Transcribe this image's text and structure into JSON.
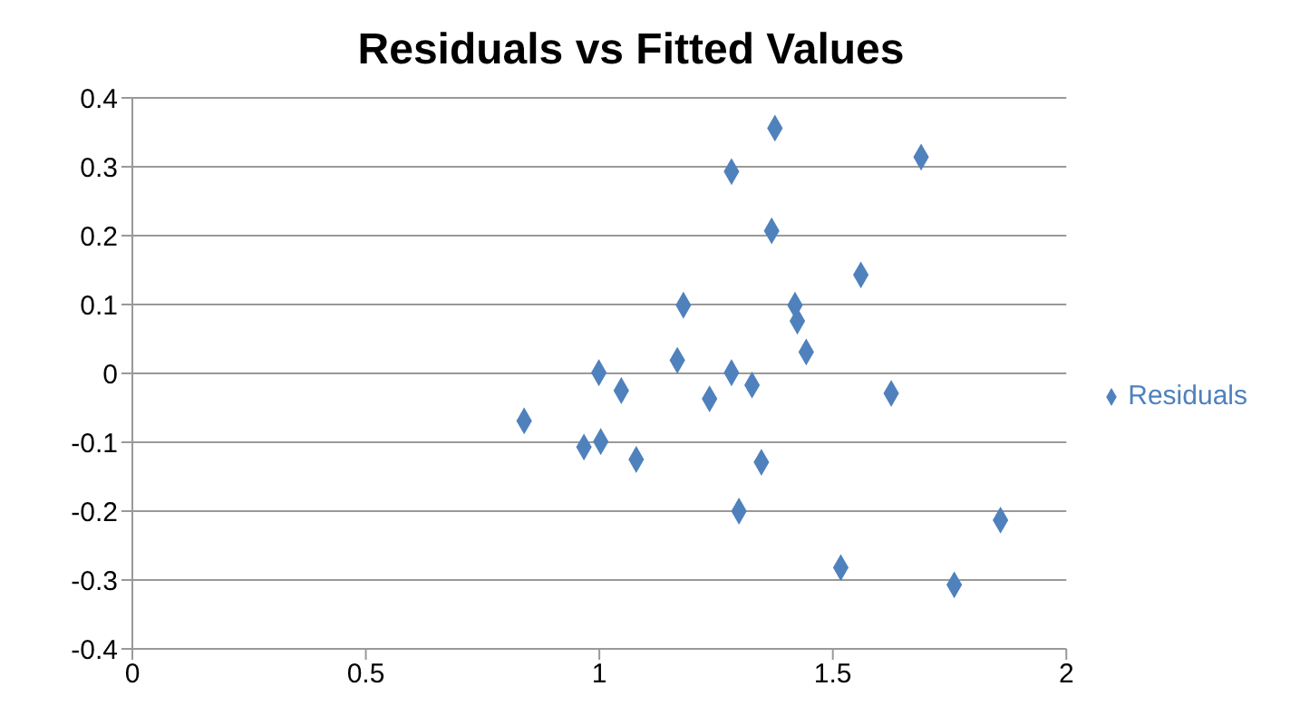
{
  "chart_data": {
    "type": "scatter",
    "title": "Residuals vs Fitted Values",
    "x": [
      1.376,
      1.283,
      1.689,
      1.369,
      1.56,
      1.18,
      1.419,
      1.424,
      1.443,
      1.167,
      0.999,
      1.283,
      1.327,
      1.047,
      1.625,
      1.236,
      0.839,
      0.967,
      1.003,
      1.079,
      1.347,
      1.299,
      1.859,
      1.517,
      1.76
    ],
    "series": [
      {
        "name": "Residuals",
        "color": "#4f81bd",
        "values": [
          0.356,
          0.293,
          0.314,
          0.207,
          0.143,
          0.099,
          0.099,
          0.076,
          0.031,
          0.019,
          0.001,
          0.001,
          -0.017,
          -0.025,
          -0.029,
          -0.037,
          -0.069,
          -0.107,
          -0.099,
          -0.125,
          -0.129,
          -0.2,
          -0.213,
          -0.282,
          -0.307
        ]
      }
    ],
    "xlim": [
      0,
      2
    ],
    "xticks": [
      0,
      0.5,
      1,
      1.5,
      2
    ],
    "ylim": [
      -0.4,
      0.4
    ],
    "yticks": [
      -0.4,
      -0.3,
      -0.2,
      -0.1,
      0,
      0.1,
      0.2,
      0.3,
      0.4
    ],
    "grid": "y",
    "legend": "right",
    "marker": "diamond"
  }
}
